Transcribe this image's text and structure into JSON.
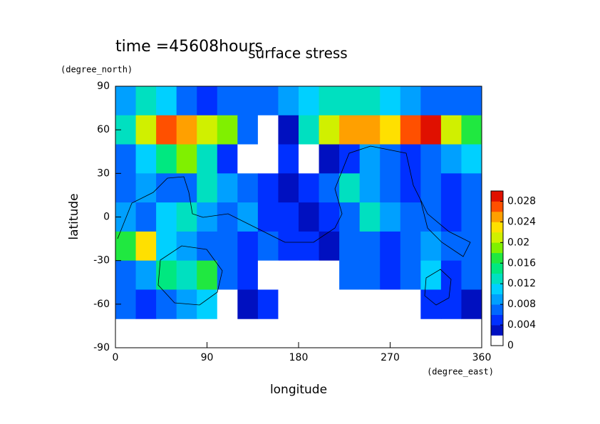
{
  "chart_data": {
    "type": "contour",
    "title": "surface stress",
    "subtitle": "time =45608hours",
    "x_label": "longitude",
    "x_unit": "(degree_east)",
    "y_label": "latitude",
    "y_unit": "(degree_north)",
    "x": [
      10,
      30,
      50,
      70,
      90,
      110,
      130,
      150,
      170,
      190,
      210,
      230,
      250,
      270,
      290,
      310,
      330,
      350
    ],
    "y": [
      80,
      60,
      40,
      20,
      0,
      -20,
      -40,
      -60
    ],
    "z": [
      [
        0.008,
        0.012,
        0.01,
        0.006,
        0.005,
        0.006,
        0.006,
        0.007,
        0.008,
        0.01,
        0.012,
        0.012,
        0.012,
        0.01,
        0.008,
        0.006,
        0.006,
        0.006
      ],
      [
        0.012,
        0.02,
        0.026,
        0.024,
        0.02,
        0.018,
        0.006,
        0,
        0.002,
        0.012,
        0.02,
        0.024,
        0.024,
        0.022,
        0.026,
        0.028,
        0.02,
        0.016
      ],
      [
        0.006,
        0.01,
        0.014,
        0.018,
        0.012,
        0.004,
        0,
        0,
        0.004,
        0,
        0.002,
        0.004,
        0.008,
        0.006,
        0.004,
        0.006,
        0.008,
        0.01
      ],
      [
        0.006,
        0.008,
        0.006,
        0.006,
        0.012,
        0.008,
        0.006,
        0.004,
        0.002,
        0.004,
        0.006,
        0.012,
        0.008,
        0.006,
        0.004,
        0.006,
        0.004,
        0.006
      ],
      [
        0.008,
        0.006,
        0.01,
        0.012,
        0.008,
        0.006,
        0.008,
        0.004,
        0.004,
        0.002,
        0.004,
        0.006,
        0.012,
        0.008,
        0.006,
        0.006,
        0.004,
        0.006
      ],
      [
        0.016,
        0.022,
        0.01,
        0.008,
        0.006,
        0.006,
        0.004,
        0.006,
        0.004,
        0.004,
        0.002,
        0.006,
        0.006,
        0.004,
        0.006,
        0.008,
        0.006,
        0.006
      ],
      [
        0.006,
        0.008,
        0.014,
        0.012,
        0.016,
        0.006,
        0.004,
        0,
        0,
        0,
        0,
        0.006,
        0.006,
        0.004,
        0.006,
        0.01,
        0.004,
        0.006
      ],
      [
        0.006,
        0.004,
        0.006,
        0.008,
        0.01,
        0,
        0.002,
        0.004,
        0,
        0,
        0,
        0,
        0,
        0,
        0,
        0.004,
        0.004,
        0.002
      ]
    ],
    "xlim": [
      0,
      360
    ],
    "xticks": [
      0,
      90,
      180,
      270,
      360
    ],
    "ylim": [
      -90,
      90
    ],
    "yticks": [
      90,
      60,
      30,
      0,
      -30,
      -60,
      -90
    ],
    "clim": [
      0,
      0.03
    ],
    "cticks": [
      0,
      0.004,
      0.008,
      0.012,
      0.016,
      0.02,
      0.024,
      0.028
    ],
    "colors": [
      "#ffffff",
      "#0010c0",
      "#0030ff",
      "#0068ff",
      "#00a0ff",
      "#00d0ff",
      "#00e0c0",
      "#00e880",
      "#20e840",
      "#80f000",
      "#d0f000",
      "#ffe000",
      "#ffa000",
      "#ff5000",
      "#e01000"
    ]
  }
}
